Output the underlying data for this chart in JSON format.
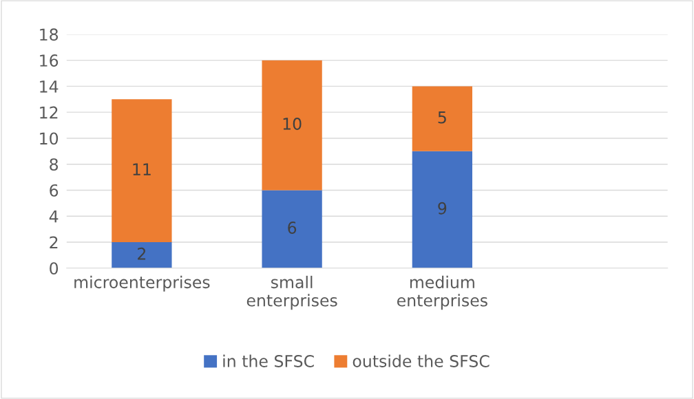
{
  "chart_data": {
    "type": "bar",
    "stacked": true,
    "categories": [
      "microenterprises",
      "small\nenterprises",
      "medium\nenterprises",
      null
    ],
    "series": [
      {
        "name": "in the SFSC",
        "color": "#4472c4",
        "values": [
          2,
          6,
          9,
          null
        ]
      },
      {
        "name": "outside the SFSC",
        "color": "#ed7d31",
        "values": [
          11,
          10,
          5,
          null
        ]
      }
    ],
    "ylim": [
      0,
      18
    ],
    "yticks": [
      0,
      2,
      4,
      6,
      8,
      10,
      12,
      14,
      16,
      18
    ],
    "grid": "y",
    "legend": "bottom",
    "data_labels": true
  }
}
